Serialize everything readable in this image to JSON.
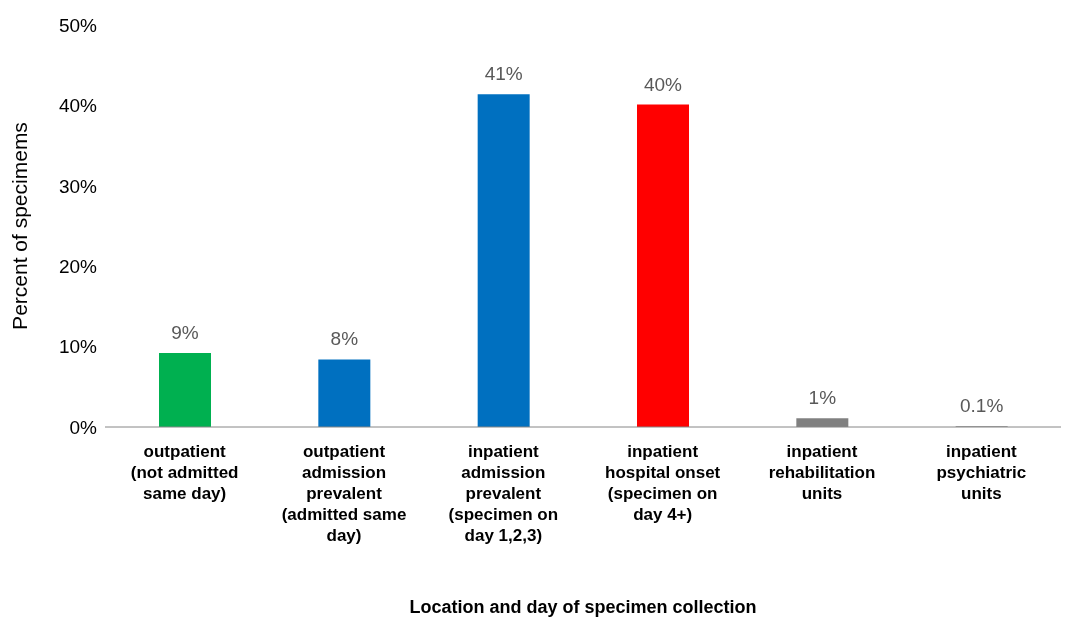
{
  "chart_data": {
    "type": "bar",
    "categories": [
      "outpatient (not admitted same day)",
      "outpatient admission prevalent (admitted same day)",
      "inpatient admission prevalent (specimen on day 1,2,3)",
      "inpatient hospital onset (specimen on day 4+)",
      "inpatient rehabilitation units",
      "inpatient psychiatric units"
    ],
    "values": [
      9.2,
      8.4,
      41.4,
      40.1,
      1.1,
      0.1
    ],
    "value_labels": [
      "9%",
      "8%",
      "41%",
      "40%",
      "1%",
      "0.1%"
    ],
    "colors": [
      "#00b050",
      "#0070c0",
      "#0070c0",
      "#ff0000",
      "#808080",
      "#808080"
    ],
    "xlabel": "Location and day of specimen collection",
    "ylabel": "Percent of specimems",
    "ylim": [
      0,
      50
    ],
    "yticks": [
      {
        "value": 0,
        "label": "0%"
      },
      {
        "value": 10,
        "label": "10%"
      },
      {
        "value": 20,
        "label": "20%"
      },
      {
        "value": 30,
        "label": "30%"
      },
      {
        "value": 40,
        "label": "40%"
      },
      {
        "value": 50,
        "label": "50%"
      }
    ],
    "grid": false,
    "legend": false
  }
}
